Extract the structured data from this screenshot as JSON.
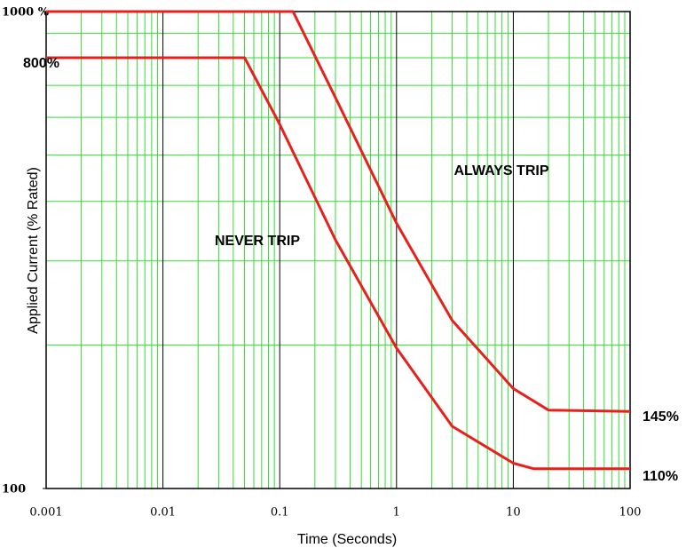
{
  "chart_data": {
    "type": "line",
    "xlabel": "Time (Seconds)",
    "ylabel": "Applied Current (% Rated)",
    "log_x": true,
    "log_y": true,
    "grid": true,
    "xlim": [
      0.001,
      100
    ],
    "ylim": [
      100,
      1000
    ],
    "xticks": [
      0.001,
      0.01,
      0.1,
      1,
      10,
      100
    ],
    "yticks": [
      100,
      {
        "value": 1000,
        "label": "1000 %"
      }
    ],
    "annotations": [
      "800%",
      "NEVER TRIP",
      "ALWAYS TRIP",
      "145%",
      "110%"
    ],
    "series": [
      {
        "color": "#e8201c",
        "x": [
          0.001,
          0.13,
          0.3,
          1,
          3,
          10,
          20,
          100
        ],
        "values": [
          1000,
          1000,
          660,
          360,
          225,
          162,
          146,
          145
        ]
      },
      {
        "color": "#e8201c",
        "x": [
          0.001,
          0.05,
          0.1,
          0.3,
          1,
          3,
          10,
          15,
          100
        ],
        "values": [
          800,
          800,
          580,
          332,
          197,
          135,
          113,
          110,
          110
        ]
      }
    ]
  }
}
